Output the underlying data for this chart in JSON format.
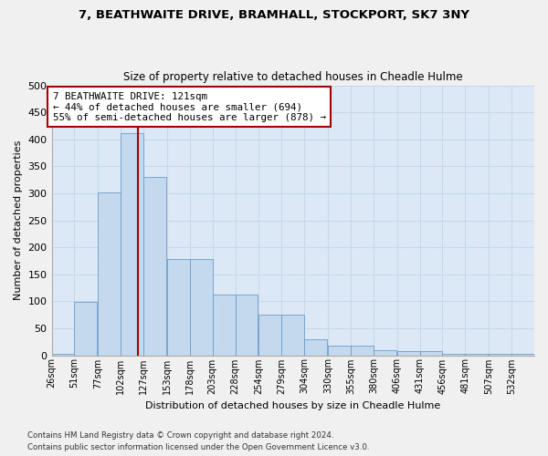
{
  "title": "7, BEATHWAITE DRIVE, BRAMHALL, STOCKPORT, SK7 3NY",
  "subtitle": "Size of property relative to detached houses in Cheadle Hulme",
  "xlabel": "Distribution of detached houses by size in Cheadle Hulme",
  "ylabel": "Number of detached properties",
  "bin_labels": [
    "26sqm",
    "51sqm",
    "77sqm",
    "102sqm",
    "127sqm",
    "153sqm",
    "178sqm",
    "203sqm",
    "228sqm",
    "254sqm",
    "279sqm",
    "304sqm",
    "330sqm",
    "355sqm",
    "380sqm",
    "406sqm",
    "431sqm",
    "456sqm",
    "481sqm",
    "507sqm",
    "532sqm"
  ],
  "bin_left_edges": [
    26,
    51,
    77,
    102,
    127,
    153,
    178,
    203,
    228,
    254,
    279,
    304,
    330,
    355,
    380,
    406,
    431,
    456,
    481,
    507,
    532
  ],
  "bin_width": 25,
  "bar_values": [
    3,
    99,
    302,
    412,
    330,
    178,
    178,
    112,
    112,
    75,
    75,
    30,
    17,
    17,
    10,
    8,
    8,
    3,
    3,
    3,
    3
  ],
  "bar_color": "#c5d9ee",
  "bar_edge_color": "#6b9ec8",
  "property_size": 121,
  "property_line_color": "#aa0000",
  "annotation_text": "7 BEATHWAITE DRIVE: 121sqm\n← 44% of detached houses are smaller (694)\n55% of semi-detached houses are larger (878) →",
  "annotation_box_facecolor": "#ffffff",
  "annotation_box_edgecolor": "#aa0000",
  "ylim": [
    0,
    500
  ],
  "yticks": [
    0,
    50,
    100,
    150,
    200,
    250,
    300,
    350,
    400,
    450,
    500
  ],
  "grid_color": "#c8d8e8",
  "background_color": "#dce8f5",
  "figure_facecolor": "#f0f0f0",
  "footer_line1": "Contains HM Land Registry data © Crown copyright and database right 2024.",
  "footer_line2": "Contains public sector information licensed under the Open Government Licence v3.0."
}
